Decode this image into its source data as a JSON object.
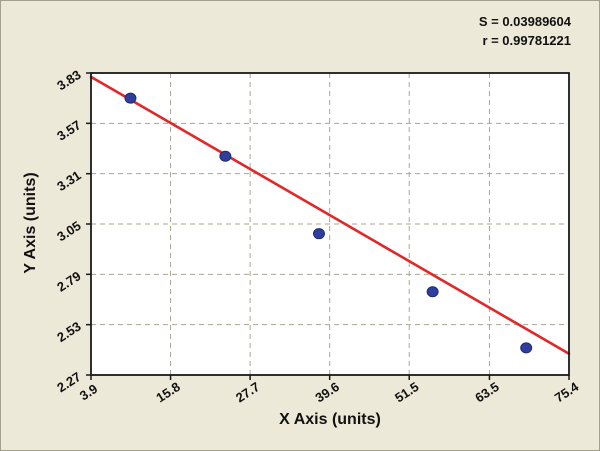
{
  "stats_panel": {
    "s": "S = 0.03989604",
    "r": "r = 0.99781221"
  },
  "chart_data": {
    "type": "scatter",
    "title": "",
    "xlabel": "X Axis (units)",
    "ylabel": "Y Axis (units)",
    "stats": {
      "s": "S = 0.03989604",
      "r": "r = 0.99781221"
    },
    "xlim": [
      3.9,
      75.4
    ],
    "ylim": [
      2.27,
      3.83
    ],
    "x_ticks": [
      3.9,
      15.8,
      27.7,
      39.6,
      51.5,
      63.5,
      75.4
    ],
    "x_tick_labels": [
      "3.9",
      "15.8",
      "27.7",
      "39.6",
      "51.5",
      "63.5",
      "75.4"
    ],
    "y_ticks": [
      2.27,
      2.53,
      2.79,
      3.05,
      3.31,
      3.57,
      3.83
    ],
    "y_tick_labels": [
      "2.27",
      "2.53",
      "2.79",
      "3.05",
      "3.31",
      "3.57",
      "3.83"
    ],
    "grid": "dashed",
    "legend": "none",
    "points": [
      [
        9.8,
        3.7
      ],
      [
        24.0,
        3.4
      ],
      [
        38.0,
        3.0
      ],
      [
        55.0,
        2.7
      ],
      [
        69.0,
        2.41
      ]
    ],
    "fit_line": {
      "x": [
        3.9,
        75.4
      ],
      "y": [
        3.81,
        2.38
      ]
    },
    "colors": {
      "background": "#ece9d8",
      "plot_bg": "#ffffff",
      "grid": "#aaa790",
      "point_fill": "#2f3e9c",
      "point_edge": "#1c2a72",
      "line": "#e32726",
      "axis": "#1a1a1a",
      "text": "#111111"
    }
  }
}
